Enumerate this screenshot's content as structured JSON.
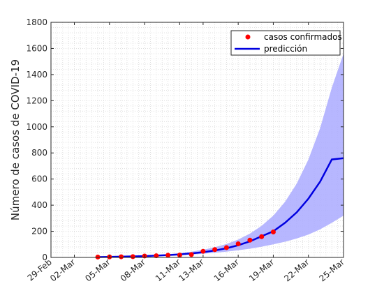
{
  "chart_data": {
    "type": "line",
    "ylabel": "Número de casos de COVID-19",
    "xlabel": "",
    "ylim": [
      0,
      1800
    ],
    "yticks": [
      0,
      200,
      400,
      600,
      800,
      1000,
      1200,
      1400,
      1600,
      1800
    ],
    "xlim": [
      "2020-02-29",
      "2020-03-25"
    ],
    "xticks": [
      "2020-02-29",
      "2020-03-02",
      "2020-03-05",
      "2020-03-08",
      "2020-03-11",
      "2020-03-13",
      "2020-03-16",
      "2020-03-19",
      "2020-03-22",
      "2020-03-25"
    ],
    "xtick_labels": [
      "29-Feb",
      "02-Mar",
      "05-Mar",
      "08-Mar",
      "11-Mar",
      "13-Mar",
      "16-Mar",
      "19-Mar",
      "22-Mar",
      "25-Mar"
    ],
    "grid": "minor-dotted",
    "legend_position": "top-right",
    "series": [
      {
        "name": "casos confirmados",
        "kind": "scatter",
        "color": "#ff0000",
        "x": [
          "2020-03-04",
          "2020-03-05",
          "2020-03-06",
          "2020-03-07",
          "2020-03-08",
          "2020-03-09",
          "2020-03-10",
          "2020-03-11",
          "2020-03-12",
          "2020-03-13",
          "2020-03-14",
          "2020-03-15",
          "2020-03-16",
          "2020-03-17",
          "2020-03-18",
          "2020-03-19"
        ],
        "y": [
          3,
          4,
          5,
          6,
          11,
          13,
          17,
          18,
          22,
          47,
          60,
          75,
          104,
          132,
          159,
          195
        ]
      },
      {
        "name": "predicción",
        "kind": "line",
        "color": "#0000e0",
        "x": [
          "2020-03-04",
          "2020-03-05",
          "2020-03-06",
          "2020-03-07",
          "2020-03-08",
          "2020-03-09",
          "2020-03-10",
          "2020-03-11",
          "2020-03-12",
          "2020-03-13",
          "2020-03-14",
          "2020-03-15",
          "2020-03-16",
          "2020-03-17",
          "2020-03-18",
          "2020-03-19",
          "2020-03-20",
          "2020-03-21",
          "2020-03-22",
          "2020-03-23",
          "2020-03-24",
          "2020-03-25"
        ],
        "y": [
          3,
          4,
          6,
          8,
          10,
          14,
          18,
          23,
          31,
          40,
          53,
          70,
          93,
          123,
          162,
          200,
          265,
          345,
          450,
          580,
          750,
          760
        ]
      }
    ],
    "band": {
      "color": "#aaaaff",
      "x": [
        "2020-03-04",
        "2020-03-05",
        "2020-03-06",
        "2020-03-07",
        "2020-03-08",
        "2020-03-09",
        "2020-03-10",
        "2020-03-11",
        "2020-03-12",
        "2020-03-13",
        "2020-03-14",
        "2020-03-15",
        "2020-03-16",
        "2020-03-17",
        "2020-03-18",
        "2020-03-19",
        "2020-03-20",
        "2020-03-21",
        "2020-03-22",
        "2020-03-23",
        "2020-03-24",
        "2020-03-25"
      ],
      "lower": [
        2,
        3,
        4,
        6,
        8,
        11,
        14,
        18,
        22,
        28,
        36,
        44,
        55,
        67,
        82,
        100,
        120,
        145,
        175,
        215,
        265,
        320
      ],
      "upper": [
        4,
        6,
        8,
        11,
        14,
        19,
        25,
        33,
        44,
        58,
        78,
        103,
        137,
        182,
        242,
        320,
        425,
        565,
        750,
        990,
        1300,
        1560
      ]
    }
  }
}
